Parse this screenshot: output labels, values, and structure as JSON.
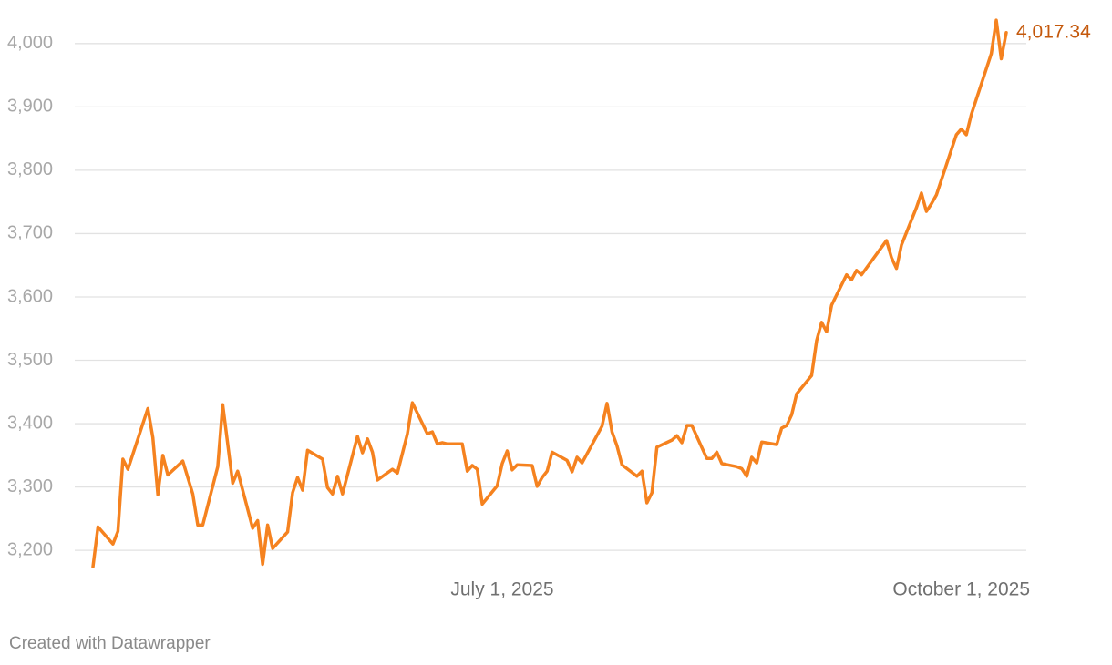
{
  "chart_data": {
    "type": "line",
    "color": "#f5821f",
    "label_color": "#c4580b",
    "grid": true,
    "credit": "Created with Datawrapper",
    "xlim": [
      "2025-04-10",
      "2025-10-10"
    ],
    "xticks": [
      {
        "value": "2025-07-01",
        "label": "July 1, 2025"
      },
      {
        "value": "2025-10-01",
        "label": "October 1, 2025"
      }
    ],
    "ylim": [
      3170,
      4040
    ],
    "yticks": [
      {
        "value": 3200,
        "label": "3,200"
      },
      {
        "value": 3300,
        "label": "3,300"
      },
      {
        "value": 3400,
        "label": "3,400"
      },
      {
        "value": 3500,
        "label": "3,500"
      },
      {
        "value": 3600,
        "label": "3,600"
      },
      {
        "value": 3700,
        "label": "3,700"
      },
      {
        "value": 3800,
        "label": "3,800"
      },
      {
        "value": 3900,
        "label": "3,900"
      },
      {
        "value": 4000,
        "label": "4,000"
      }
    ],
    "x": [
      "2025-04-10",
      "2025-04-11",
      "2025-04-14",
      "2025-04-15",
      "2025-04-16",
      "2025-04-17",
      "2025-04-21",
      "2025-04-22",
      "2025-04-23",
      "2025-04-24",
      "2025-04-25",
      "2025-04-28",
      "2025-04-30",
      "2025-05-01",
      "2025-05-02",
      "2025-05-05",
      "2025-05-06",
      "2025-05-08",
      "2025-05-09",
      "2025-05-12",
      "2025-05-13",
      "2025-05-14",
      "2025-05-15",
      "2025-05-16",
      "2025-05-19",
      "2025-05-20",
      "2025-05-21",
      "2025-05-22",
      "2025-05-23",
      "2025-05-26",
      "2025-05-27",
      "2025-05-28",
      "2025-05-29",
      "2025-05-30",
      "2025-06-02",
      "2025-06-03",
      "2025-06-04",
      "2025-06-05",
      "2025-06-06",
      "2025-06-09",
      "2025-06-10",
      "2025-06-12",
      "2025-06-13",
      "2025-06-16",
      "2025-06-17",
      "2025-06-18",
      "2025-06-19",
      "2025-06-20",
      "2025-06-23",
      "2025-06-24",
      "2025-06-25",
      "2025-06-26",
      "2025-06-27",
      "2025-06-30",
      "2025-07-01",
      "2025-07-02",
      "2025-07-03",
      "2025-07-04",
      "2025-07-07",
      "2025-07-08",
      "2025-07-09",
      "2025-07-10",
      "2025-07-11",
      "2025-07-14",
      "2025-07-15",
      "2025-07-16",
      "2025-07-17",
      "2025-07-21",
      "2025-07-22",
      "2025-07-23",
      "2025-07-24",
      "2025-07-25",
      "2025-07-28",
      "2025-07-29",
      "2025-07-30",
      "2025-07-31",
      "2025-08-01",
      "2025-08-04",
      "2025-08-05",
      "2025-08-06",
      "2025-08-07",
      "2025-08-08",
      "2025-08-11",
      "2025-08-12",
      "2025-08-13",
      "2025-08-14",
      "2025-08-17",
      "2025-08-18",
      "2025-08-19",
      "2025-08-20",
      "2025-08-21",
      "2025-08-22",
      "2025-08-25",
      "2025-08-26",
      "2025-08-27",
      "2025-08-28",
      "2025-08-29",
      "2025-09-01",
      "2025-09-02",
      "2025-09-03",
      "2025-09-04",
      "2025-09-05",
      "2025-09-08",
      "2025-09-09",
      "2025-09-10",
      "2025-09-11",
      "2025-09-16",
      "2025-09-17",
      "2025-09-18",
      "2025-09-19",
      "2025-09-22",
      "2025-09-23",
      "2025-09-24",
      "2025-09-25",
      "2025-09-26",
      "2025-09-30",
      "2025-10-01",
      "2025-10-02",
      "2025-10-03",
      "2025-10-07",
      "2025-10-08",
      "2025-10-09",
      "2025-10-10"
    ],
    "values": [
      3174,
      3237,
      3210,
      3230,
      3344,
      3328,
      3424,
      3378,
      3288,
      3350,
      3319,
      3341,
      3289,
      3240,
      3240,
      3332,
      3430,
      3306,
      3325,
      3235,
      3247,
      3178,
      3240,
      3203,
      3229,
      3291,
      3315,
      3295,
      3358,
      3344,
      3299,
      3289,
      3317,
      3289,
      3380,
      3354,
      3376,
      3355,
      3311,
      3328,
      3322,
      3384,
      3433,
      3384,
      3387,
      3368,
      3370,
      3368,
      3368,
      3325,
      3334,
      3328,
      3273,
      3302,
      3337,
      3357,
      3327,
      3335,
      3334,
      3301,
      3315,
      3325,
      3355,
      3342,
      3324,
      3347,
      3338,
      3396,
      3432,
      3387,
      3365,
      3335,
      3317,
      3325,
      3275,
      3291,
      3363,
      3374,
      3381,
      3370,
      3397,
      3397,
      3345,
      3345,
      3355,
      3337,
      3332,
      3329,
      3317,
      3347,
      3338,
      3371,
      3367,
      3393,
      3397,
      3414,
      3447,
      3476,
      3531,
      3560,
      3545,
      3587,
      3635,
      3627,
      3642,
      3635,
      3689,
      3662,
      3645,
      3682,
      3741,
      3764,
      3735,
      3747,
      3761,
      3856,
      3865,
      3856,
      3888,
      3984,
      4037,
      3976,
      4017.34
    ],
    "value_labels": [
      null,
      null,
      null,
      null,
      null,
      null,
      null,
      null,
      null,
      null,
      null,
      null,
      null,
      null,
      null,
      null,
      null,
      null,
      null,
      null,
      null,
      null,
      null,
      null,
      null,
      null,
      null,
      null,
      null,
      null,
      null,
      null,
      null,
      null,
      null,
      null,
      null,
      null,
      null,
      null,
      null,
      null,
      null,
      null,
      null,
      null,
      null,
      null,
      null,
      null,
      null,
      null,
      null,
      null,
      null,
      null,
      null,
      null,
      null,
      null,
      null,
      null,
      null,
      null,
      null,
      null,
      null,
      null,
      null,
      null,
      null,
      null,
      null,
      null,
      null,
      null,
      null,
      null,
      null,
      null,
      null,
      null,
      null,
      null,
      null,
      null,
      null,
      null,
      null,
      null,
      null,
      null,
      null,
      null,
      null,
      null,
      null,
      null,
      null,
      null,
      null,
      null,
      null,
      null,
      null,
      null,
      null,
      null,
      null,
      null,
      null,
      null,
      null,
      null,
      null,
      null,
      null,
      null,
      null,
      null,
      null,
      null,
      "4,017.34"
    ]
  }
}
